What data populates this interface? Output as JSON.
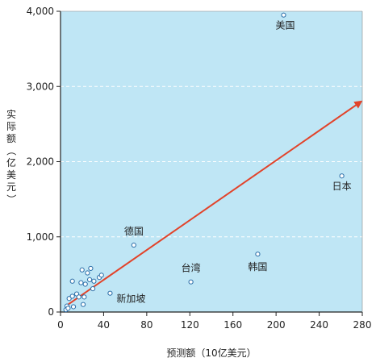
{
  "colors": {
    "plot_background": "#bfe6f5",
    "gridline": "#ffffff",
    "axis": "#222222",
    "point_fill": "#ffffff",
    "point_stroke": "#2b6ea8",
    "arrow": "#e2432a"
  },
  "chart_data": {
    "type": "scatter",
    "xlabel": "预测额（10亿美元）",
    "ylabel": "实际额（亿美元）",
    "xlim": [
      0,
      280
    ],
    "ylim": [
      0,
      4000
    ],
    "x_ticks": [
      "0",
      "40",
      "80",
      "120",
      "160",
      "200",
      "240",
      "280"
    ],
    "y_ticks": [
      "0",
      "1,000",
      "2,000",
      "3,000",
      "4,000"
    ],
    "grid": "horizontal dashed",
    "trend_arrow": {
      "x": [
        5,
        279
      ],
      "y": [
        80,
        2800
      ]
    },
    "points": [
      {
        "x": 207,
        "y": 3950,
        "label": "美国"
      },
      {
        "x": 261,
        "y": 1810,
        "label": "日本"
      },
      {
        "x": 68,
        "y": 890,
        "label": "德国"
      },
      {
        "x": 121,
        "y": 400,
        "label": "台湾"
      },
      {
        "x": 183,
        "y": 770,
        "label": "韩国"
      },
      {
        "x": 46,
        "y": 250,
        "label": "新加坡"
      },
      {
        "x": 5,
        "y": 30
      },
      {
        "x": 6,
        "y": 80
      },
      {
        "x": 7,
        "y": 50
      },
      {
        "x": 8,
        "y": 180
      },
      {
        "x": 11,
        "y": 210
      },
      {
        "x": 11,
        "y": 410
      },
      {
        "x": 12,
        "y": 70
      },
      {
        "x": 15,
        "y": 240
      },
      {
        "x": 17,
        "y": 200
      },
      {
        "x": 19,
        "y": 390
      },
      {
        "x": 20,
        "y": 560
      },
      {
        "x": 21,
        "y": 100
      },
      {
        "x": 22,
        "y": 200
      },
      {
        "x": 23,
        "y": 370
      },
      {
        "x": 25,
        "y": 520
      },
      {
        "x": 27,
        "y": 430
      },
      {
        "x": 28,
        "y": 580
      },
      {
        "x": 30,
        "y": 310
      },
      {
        "x": 31,
        "y": 410
      },
      {
        "x": 36,
        "y": 460
      },
      {
        "x": 38,
        "y": 490
      }
    ]
  }
}
